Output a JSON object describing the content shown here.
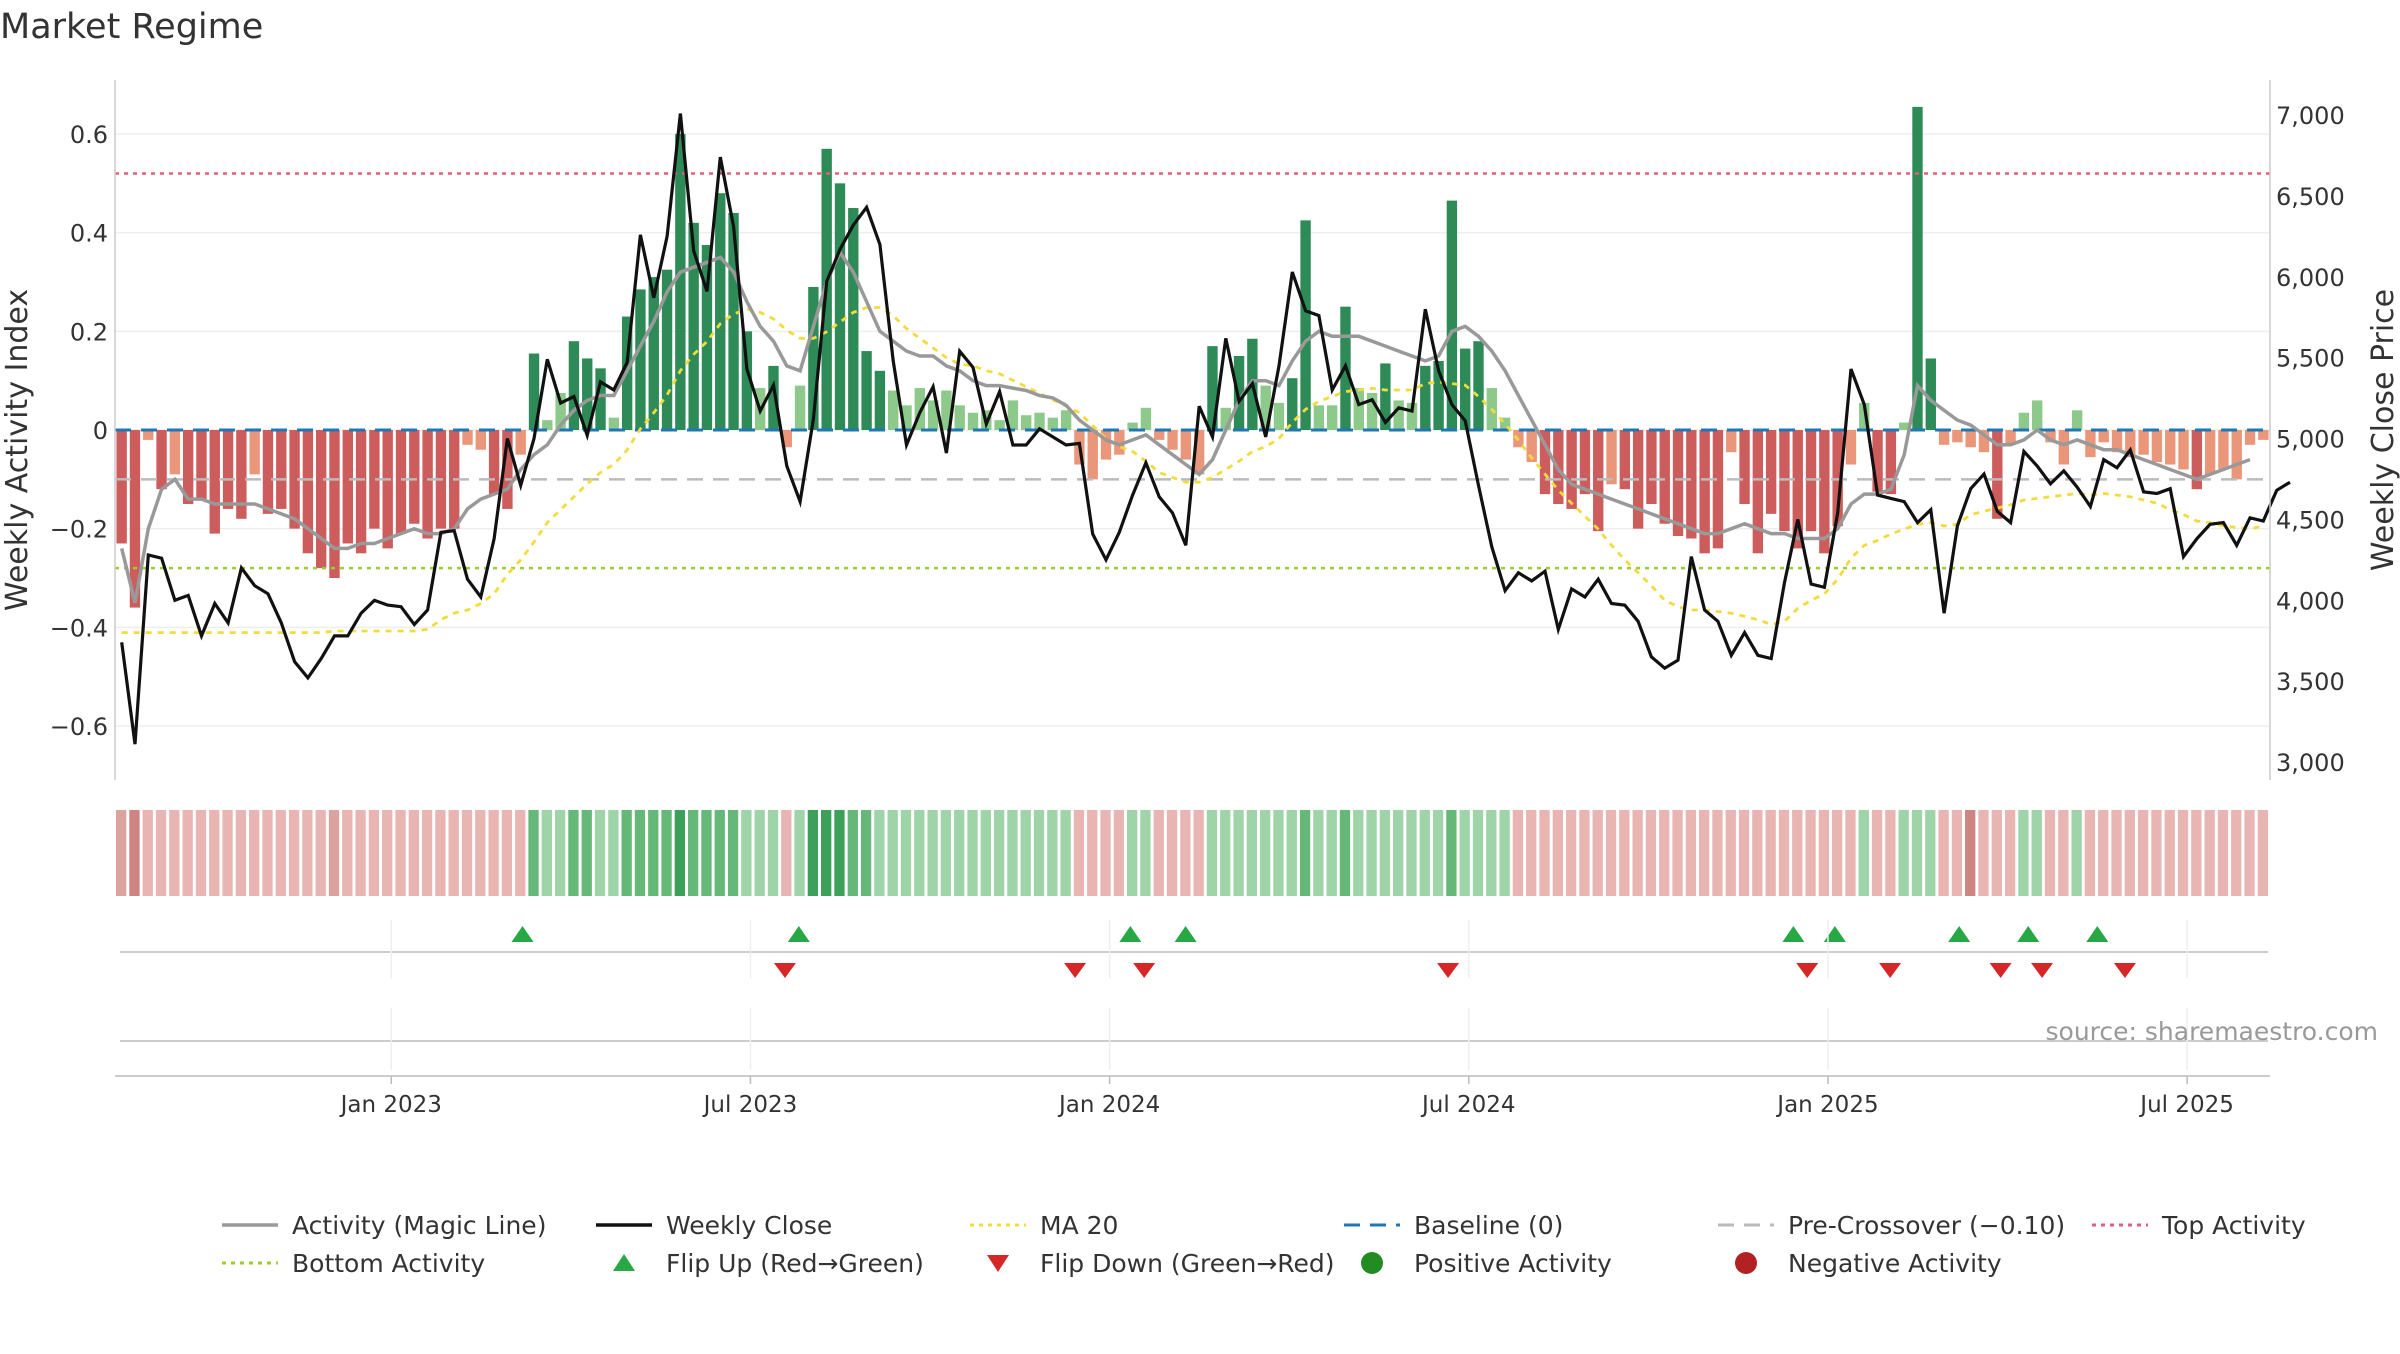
{
  "page": {
    "title": "Market Regime",
    "source": "source: sharemaestro.com"
  },
  "chart_data": {
    "type": "bar",
    "title": "Market Regime",
    "ylabel_left": "Weekly Activity Index",
    "ylabel_right": "Weekly Close Price",
    "ylim_left": [
      -0.72,
      0.7
    ],
    "ylim_right": [
      2900,
      7100
    ],
    "left_ticks": [
      -0.6,
      -0.4,
      -0.2,
      0,
      0.2,
      0.4,
      0.6
    ],
    "left_tick_labels": [
      "−0.6",
      "−0.4",
      "−0.2",
      "0",
      "0.2",
      "0.4",
      "0.6"
    ],
    "right_ticks": [
      3000,
      3500,
      4000,
      4500,
      5000,
      5500,
      6000,
      6500,
      7000
    ],
    "right_tick_labels": [
      "3,000",
      "3,500",
      "4,000",
      "4,500",
      "5,000",
      "5,500",
      "6,000",
      "6,500",
      "7,000"
    ],
    "x_ticks": [
      {
        "week": 20,
        "label": "Jan 2023"
      },
      {
        "week": 46,
        "label": "Jul 2023"
      },
      {
        "week": 72,
        "label": "Jan 2024"
      },
      {
        "week": 98,
        "label": "Jul 2024"
      },
      {
        "week": 124,
        "label": "Jan 2025"
      },
      {
        "week": 150,
        "label": "Jul 2025"
      }
    ],
    "x_range_weeks": [
      0,
      156
    ],
    "reference_lines": {
      "baseline": 0,
      "pre_crossover": -0.1,
      "top_activity": 0.52,
      "bottom_activity": -0.28
    },
    "colors": {
      "pos_strong": "#2e8b57",
      "pos_light": "#8cc98a",
      "neg_strong": "#cd5c5c",
      "neg_light": "#e9967a",
      "magic_line": "#999999",
      "weekly_close": "#111111",
      "ma20": "#f2dc3c",
      "baseline": "#1f77b4",
      "pre_crossover": "#bbbbbb",
      "top_activity": "#e0607a",
      "bottom_activity": "#9acd32",
      "flip_up": "#27a844",
      "flip_down": "#d62728",
      "positive_dot": "#228b22",
      "negative_dot": "#b22222"
    },
    "activity": [
      -0.23,
      -0.36,
      -0.02,
      -0.12,
      -0.09,
      -0.15,
      -0.14,
      -0.21,
      -0.16,
      -0.18,
      -0.09,
      -0.17,
      -0.16,
      -0.2,
      -0.25,
      -0.28,
      -0.3,
      -0.23,
      -0.25,
      -0.2,
      -0.24,
      -0.21,
      -0.19,
      -0.22,
      -0.2,
      -0.2,
      -0.03,
      -0.04,
      -0.13,
      -0.16,
      -0.05,
      0.155,
      0.02,
      0.075,
      0.18,
      0.145,
      0.125,
      0.025,
      0.23,
      0.285,
      0.31,
      0.325,
      0.6,
      0.42,
      0.375,
      0.48,
      0.44,
      0.2,
      0.085,
      0.13,
      -0.035,
      0.09,
      0.29,
      0.57,
      0.5,
      0.45,
      0.16,
      0.12,
      0.08,
      0.05,
      0.085,
      0.06,
      0.08,
      0.05,
      0.035,
      0.04,
      0.02,
      0.06,
      0.03,
      0.035,
      0.025,
      0.04,
      -0.07,
      -0.1,
      -0.06,
      -0.05,
      0.015,
      0.045,
      -0.02,
      -0.04,
      -0.06,
      -0.09,
      0.17,
      0.045,
      0.15,
      0.185,
      0.09,
      0.055,
      0.105,
      0.425,
      0.05,
      0.05,
      0.25,
      0.085,
      0.075,
      0.135,
      0.06,
      0.055,
      0.13,
      0.14,
      0.465,
      0.165,
      0.18,
      0.085,
      0.025,
      -0.035,
      -0.065,
      -0.13,
      -0.15,
      -0.16,
      -0.13,
      -0.205,
      -0.11,
      -0.12,
      -0.2,
      -0.15,
      -0.19,
      -0.215,
      -0.22,
      -0.25,
      -0.24,
      -0.045,
      -0.15,
      -0.25,
      -0.17,
      -0.205,
      -0.24,
      -0.205,
      -0.25,
      -0.195,
      -0.07,
      0.055,
      -0.125,
      -0.13,
      0.015,
      0.655,
      0.145,
      -0.03,
      -0.025,
      -0.035,
      -0.045,
      -0.18,
      -0.03,
      0.035,
      0.06,
      -0.025,
      -0.07,
      0.04,
      -0.055,
      -0.025,
      -0.045,
      -0.055,
      -0.05,
      -0.065,
      -0.07,
      -0.08,
      -0.12,
      -0.09,
      -0.08,
      -0.1,
      -0.03,
      -0.02
    ],
    "magic_line": [
      -0.24,
      -0.35,
      -0.2,
      -0.12,
      -0.1,
      -0.14,
      -0.14,
      -0.15,
      -0.15,
      -0.15,
      -0.15,
      -0.16,
      -0.17,
      -0.18,
      -0.2,
      -0.22,
      -0.24,
      -0.24,
      -0.23,
      -0.23,
      -0.22,
      -0.21,
      -0.2,
      -0.21,
      -0.21,
      -0.2,
      -0.16,
      -0.14,
      -0.13,
      -0.12,
      -0.08,
      -0.05,
      -0.03,
      0.01,
      0.04,
      0.06,
      0.07,
      0.07,
      0.12,
      0.17,
      0.22,
      0.28,
      0.32,
      0.33,
      0.34,
      0.35,
      0.32,
      0.26,
      0.21,
      0.18,
      0.13,
      0.12,
      0.21,
      0.3,
      0.36,
      0.32,
      0.26,
      0.2,
      0.18,
      0.16,
      0.15,
      0.15,
      0.13,
      0.12,
      0.1,
      0.09,
      0.09,
      0.085,
      0.08,
      0.07,
      0.065,
      0.05,
      0.02,
      0.0,
      -0.02,
      -0.03,
      -0.02,
      -0.01,
      -0.03,
      -0.05,
      -0.07,
      -0.09,
      -0.06,
      0.0,
      0.06,
      0.1,
      0.1,
      0.09,
      0.14,
      0.18,
      0.2,
      0.19,
      0.19,
      0.19,
      0.18,
      0.17,
      0.16,
      0.15,
      0.14,
      0.15,
      0.2,
      0.21,
      0.19,
      0.16,
      0.12,
      0.07,
      0.02,
      -0.03,
      -0.08,
      -0.11,
      -0.12,
      -0.13,
      -0.14,
      -0.15,
      -0.16,
      -0.17,
      -0.18,
      -0.19,
      -0.2,
      -0.21,
      -0.21,
      -0.2,
      -0.19,
      -0.2,
      -0.21,
      -0.21,
      -0.22,
      -0.22,
      -0.22,
      -0.2,
      -0.15,
      -0.13,
      -0.13,
      -0.12,
      -0.05,
      0.09,
      0.06,
      0.04,
      0.02,
      0.01,
      -0.01,
      -0.03,
      -0.03,
      -0.02,
      0.0,
      -0.02,
      -0.03,
      -0.02,
      -0.03,
      -0.04,
      -0.04,
      -0.05,
      -0.06,
      -0.07,
      -0.08,
      -0.09,
      -0.1,
      -0.09,
      -0.08,
      -0.07,
      -0.06
    ],
    "weekly_close": [
      3740,
      3110,
      4280,
      4260,
      4000,
      4030,
      3780,
      3980,
      3860,
      4200,
      4090,
      4040,
      3860,
      3620,
      3520,
      3640,
      3780,
      3780,
      3920,
      4000,
      3970,
      3960,
      3850,
      3940,
      4420,
      4430,
      4130,
      4020,
      4380,
      5000,
      4710,
      5000,
      5490,
      5220,
      5260,
      5020,
      5350,
      5300,
      5470,
      6260,
      5870,
      6250,
      7010,
      6160,
      5910,
      6740,
      6310,
      5430,
      5170,
      5330,
      4830,
      4610,
      5120,
      5970,
      6170,
      6320,
      6430,
      6200,
      5480,
      4960,
      5160,
      5320,
      4910,
      5540,
      5440,
      5090,
      5290,
      4960,
      4960,
      5060,
      5010,
      4960,
      4970,
      4410,
      4250,
      4420,
      4650,
      4850,
      4640,
      4540,
      4340,
      5200,
      5010,
      5620,
      5230,
      5340,
      5010,
      5450,
      6030,
      5790,
      5760,
      5300,
      5450,
      5210,
      5240,
      5100,
      5190,
      5170,
      5800,
      5420,
      5210,
      5110,
      4710,
      4330,
      4060,
      4170,
      4120,
      4180,
      3820,
      4070,
      4020,
      4130,
      3980,
      3970,
      3870,
      3650,
      3580,
      3630,
      4270,
      3940,
      3870,
      3660,
      3800,
      3660,
      3640,
      4110,
      4500,
      4100,
      4080,
      4540,
      5430,
      5210,
      4650,
      4630,
      4610,
      4480,
      4560,
      3920,
      4460,
      4690,
      4780,
      4550,
      4480,
      4920,
      4830,
      4720,
      4800,
      4700,
      4580,
      4870,
      4820,
      4930,
      4670,
      4660,
      4690,
      4270,
      4380,
      4470,
      4480,
      4340,
      4510,
      4490,
      4680,
      4730
    ],
    "ma20": [
      3800,
      3800,
      3800,
      3800,
      3800,
      3800,
      3800,
      3800,
      3800,
      3800,
      3800,
      3800,
      3800,
      3800,
      3800,
      3800,
      3810,
      3810,
      3810,
      3810,
      3810,
      3810,
      3810,
      3820,
      3880,
      3920,
      3940,
      3980,
      4040,
      4160,
      4250,
      4360,
      4480,
      4560,
      4640,
      4720,
      4790,
      4840,
      4930,
      5060,
      5160,
      5270,
      5420,
      5520,
      5600,
      5710,
      5770,
      5800,
      5780,
      5740,
      5670,
      5620,
      5620,
      5660,
      5720,
      5780,
      5810,
      5810,
      5760,
      5680,
      5620,
      5560,
      5500,
      5460,
      5450,
      5420,
      5400,
      5360,
      5320,
      5280,
      5240,
      5200,
      5160,
      5080,
      5000,
      4950,
      4920,
      4860,
      4790,
      4760,
      4730,
      4730,
      4760,
      4810,
      4860,
      4920,
      4950,
      5000,
      5100,
      5180,
      5230,
      5260,
      5290,
      5300,
      5310,
      5300,
      5300,
      5300,
      5340,
      5350,
      5340,
      5330,
      5260,
      5180,
      5090,
      4990,
      4880,
      4780,
      4680,
      4600,
      4520,
      4440,
      4340,
      4250,
      4170,
      4090,
      4000,
      3960,
      3940,
      3940,
      3930,
      3920,
      3900,
      3880,
      3850,
      3870,
      3950,
      4000,
      4040,
      4130,
      4260,
      4340,
      4370,
      4410,
      4440,
      4470,
      4480,
      4460,
      4470,
      4530,
      4550,
      4570,
      4590,
      4620,
      4630,
      4640,
      4650,
      4660,
      4650,
      4660,
      4650,
      4640,
      4620,
      4600,
      4560,
      4530,
      4490,
      4480,
      4460,
      4450,
      4440,
      4460
    ],
    "regime_strip_strength": [
      2,
      3,
      1,
      1,
      1,
      1,
      1,
      1,
      1,
      1,
      1,
      1,
      1,
      1,
      1,
      1,
      2,
      1,
      1,
      1,
      1,
      1,
      1,
      1,
      1,
      1,
      1,
      1,
      1,
      1,
      1,
      2,
      1,
      1,
      2,
      2,
      1,
      1,
      2,
      2,
      2,
      2,
      3,
      2,
      2,
      2,
      2,
      1,
      1,
      1,
      1,
      1,
      3,
      3,
      3,
      2,
      2,
      1,
      1,
      1,
      1,
      1,
      1,
      1,
      1,
      1,
      1,
      1,
      1,
      1,
      1,
      1,
      1,
      1,
      1,
      1,
      1,
      1,
      1,
      1,
      1,
      1,
      1,
      1,
      1,
      1,
      1,
      1,
      1,
      2,
      1,
      1,
      2,
      1,
      1,
      1,
      1,
      1,
      1,
      1,
      2,
      1,
      1,
      1,
      1,
      1,
      1,
      1,
      1,
      1,
      1,
      1,
      1,
      1,
      1,
      1,
      1,
      1,
      1,
      1,
      1,
      1,
      1,
      1,
      1,
      1,
      1,
      1,
      1,
      1,
      1,
      1,
      1,
      1,
      1,
      1,
      1,
      1,
      1,
      3,
      1,
      1,
      1,
      1,
      1,
      1,
      1,
      1,
      1,
      1,
      1,
      1,
      1,
      1,
      1,
      1,
      1,
      1,
      1,
      1,
      1,
      1,
      1,
      1,
      1,
      1
    ],
    "flip_up_weeks": [
      29.5,
      49.5,
      73.5,
      77.5,
      121.5,
      124.5,
      133.5,
      138.5,
      143.5
    ],
    "flip_down_weeks": [
      48.5,
      69.5,
      74.5,
      96.5,
      122.5,
      128.5,
      136.5,
      139.5,
      145.5
    ]
  },
  "legend": [
    {
      "label": "Activity (Magic Line)",
      "icon": "solid-line-icon",
      "color": "#999999"
    },
    {
      "label": "Weekly Close",
      "icon": "solid-line-icon",
      "color": "#111111"
    },
    {
      "label": "MA 20",
      "icon": "dotted-line-icon",
      "color": "#f2dc3c"
    },
    {
      "label": "Baseline (0)",
      "icon": "dashed-line-icon",
      "color": "#1f77b4"
    },
    {
      "label": "Pre-Crossover (−0.10)",
      "icon": "dashed-line-icon",
      "color": "#bbbbbb"
    },
    {
      "label": "Top Activity",
      "icon": "dotted-line-icon",
      "color": "#e0607a"
    },
    {
      "label": "Bottom Activity",
      "icon": "dotted-line-icon",
      "color": "#9acd32"
    },
    {
      "label": "Flip Up (Red→Green)",
      "icon": "triangle-up-icon",
      "color": "#27a844"
    },
    {
      "label": "Flip Down (Green→Red)",
      "icon": "triangle-down-icon",
      "color": "#d62728"
    },
    {
      "label": "Positive Activity",
      "icon": "circle-icon",
      "color": "#228b22"
    },
    {
      "label": "Negative Activity",
      "icon": "circle-icon",
      "color": "#b22222"
    }
  ]
}
